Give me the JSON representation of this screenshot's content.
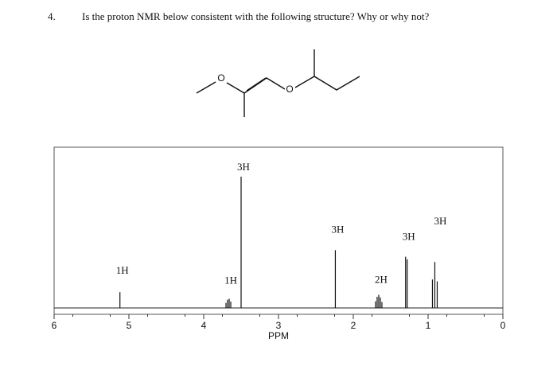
{
  "question": {
    "number": "4.",
    "text": "Is the proton NMR below consistent with the following structure? Why or why not?"
  },
  "structure": {
    "atoms": [
      "O",
      "O"
    ]
  },
  "spectrum": {
    "xlabel": "PPM",
    "xlim": [
      6,
      0
    ],
    "xticks": [
      6,
      5,
      4,
      3,
      2,
      1,
      0
    ],
    "peaks": [
      {
        "label": "1H",
        "ppm": 5.12,
        "intensity": 12
      },
      {
        "label": "1H",
        "ppm": 3.67,
        "intensity": 7
      },
      {
        "label": "3H",
        "ppm": 3.5,
        "intensity": 100
      },
      {
        "label": "3H",
        "ppm": 2.24,
        "intensity": 44
      },
      {
        "label": "2H",
        "ppm": 1.66,
        "intensity": 10
      },
      {
        "label": "3H",
        "ppm": 1.29,
        "intensity": 39
      },
      {
        "label": "3H",
        "ppm": 0.91,
        "intensity": 35
      }
    ]
  }
}
